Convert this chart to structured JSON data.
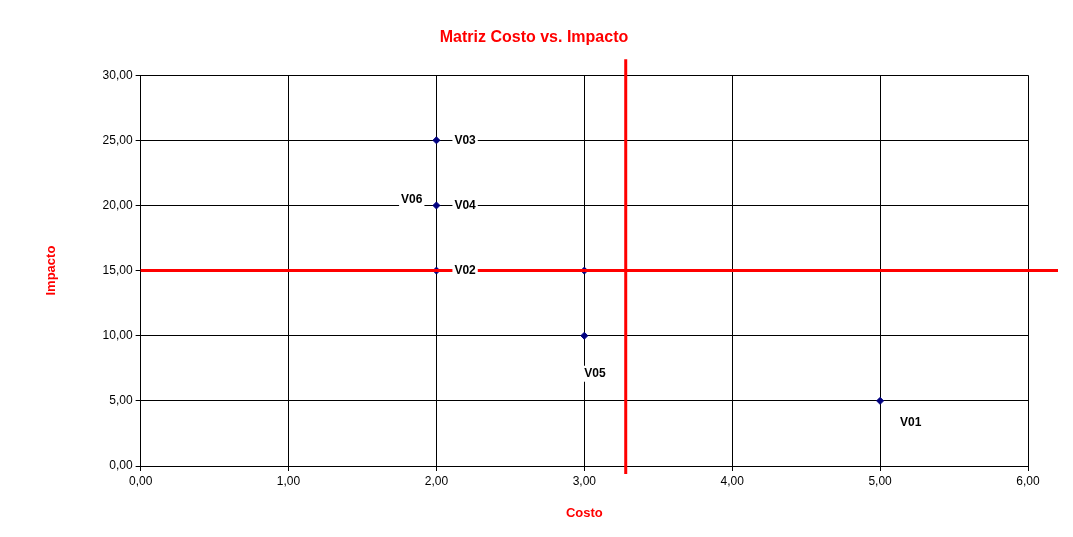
{
  "chart_data": {
    "type": "scatter",
    "title": "Matriz Costo vs. Impacto",
    "xlabel": "Costo",
    "ylabel": "Impacto",
    "x": [
      2,
      2,
      2,
      3,
      3,
      5
    ],
    "series": [
      {
        "color": "#000080",
        "values": [
          25,
          20,
          15,
          15,
          10,
          5
        ]
      }
    ],
    "annotations": [
      {
        "text": "V03",
        "x": 2,
        "y": 25
      },
      {
        "text": "V04",
        "x": 2,
        "y": 20
      },
      {
        "text": "V06",
        "x": 2,
        "y": 20
      },
      {
        "text": "V02",
        "x": 2,
        "y": 15
      },
      {
        "text": "V05",
        "x": 3,
        "y": 10
      },
      {
        "text": "V01",
        "x": 5,
        "y": 5
      }
    ],
    "ref_lines": [
      {
        "axis": "x",
        "value": 3.28,
        "color": "#ff0000"
      },
      {
        "axis": "y",
        "value": 15,
        "color": "#ff0000"
      }
    ],
    "xlim": [
      0,
      6
    ],
    "ylim": [
      0,
      30
    ],
    "xticks": [
      {
        "value": 0,
        "label": "0,00"
      },
      {
        "value": 1,
        "label": "1,00"
      },
      {
        "value": 2,
        "label": "2,00"
      },
      {
        "value": 3,
        "label": "3,00"
      },
      {
        "value": 4,
        "label": "4,00"
      },
      {
        "value": 5,
        "label": "5,00"
      },
      {
        "value": 6,
        "label": "6,00"
      }
    ],
    "yticks": [
      {
        "value": 0,
        "label": "0,00"
      },
      {
        "value": 5,
        "label": "5,00"
      },
      {
        "value": 10,
        "label": "10,00"
      },
      {
        "value": 15,
        "label": "15,00"
      },
      {
        "value": 20,
        "label": "20,00"
      },
      {
        "value": 25,
        "label": "25,00"
      },
      {
        "value": 30,
        "label": "30,00"
      }
    ],
    "grid": true,
    "marker": "diamond",
    "legend": false
  }
}
